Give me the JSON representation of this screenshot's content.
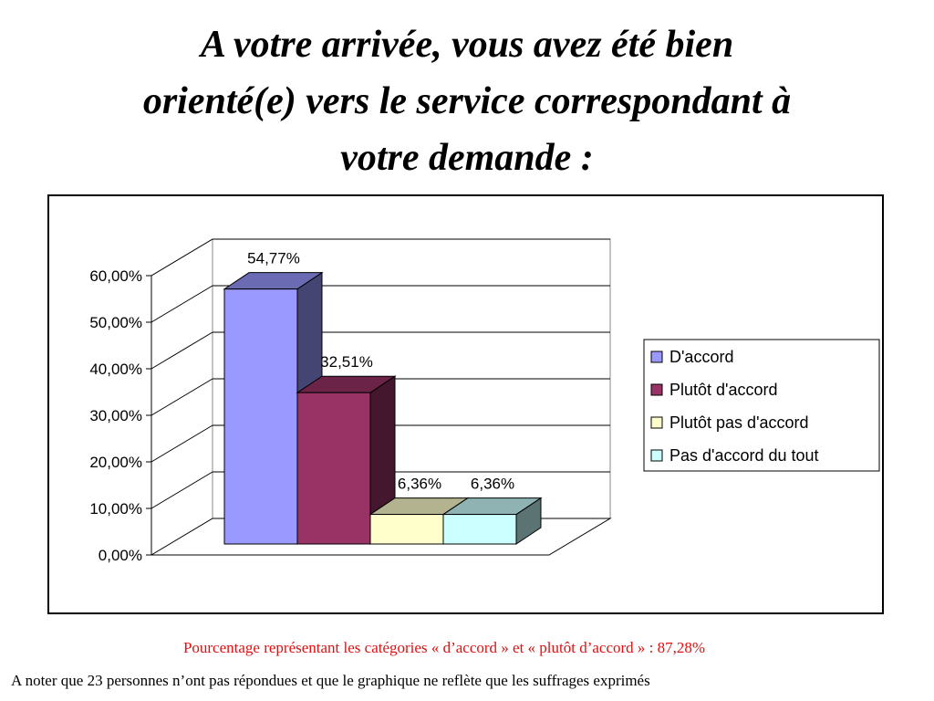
{
  "title": {
    "line1": "A votre arrivée, vous avez été bien",
    "line2": "orienté(e) vers le service correspondant à",
    "line3": "votre demande :"
  },
  "chart_data": {
    "type": "bar",
    "style": "3d-column",
    "categories": [
      "D'accord",
      "Plutôt d'accord",
      "Plutôt pas d'accord",
      "Pas d'accord du tout"
    ],
    "values": [
      54.77,
      32.51,
      6.36,
      6.36
    ],
    "data_labels": [
      "54,77%",
      "32,51%",
      "6,36%",
      "6,36%"
    ],
    "colors": [
      "#9999ff",
      "#993366",
      "#ffffcc",
      "#ccffff"
    ],
    "ylim": [
      0,
      60
    ],
    "yticks": [
      "0,00%",
      "10,00%",
      "20,00%",
      "30,00%",
      "40,00%",
      "50,00%",
      "60,00%"
    ],
    "grid": true,
    "legend": {
      "position": "right",
      "entries": [
        "D'accord",
        "Plutôt d'accord",
        "Plutôt pas d'accord",
        "Pas d'accord du tout"
      ]
    }
  },
  "notes": {
    "summary": "Pourcentage représentant les catégories « d’accord » et « plutôt d’accord » : 87,28%",
    "footnote": "A noter que 23 personnes n’ont pas répondues et que le graphique ne reflète que les suffrages exprimés"
  }
}
